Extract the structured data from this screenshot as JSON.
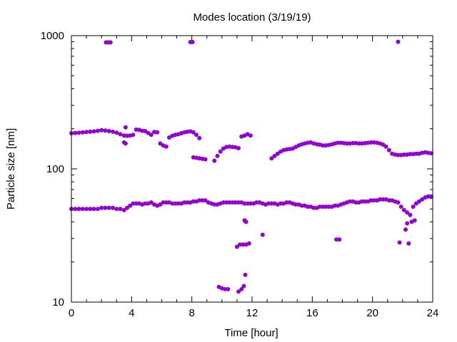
{
  "chart_data": {
    "type": "scatter",
    "title": "Modes location (3/19/19)",
    "xlabel": "Time [hour]",
    "ylabel": "Particle size [nm]",
    "xlim": [
      0,
      24
    ],
    "ylim": [
      10,
      1000
    ],
    "yscale": "log",
    "xticks": [
      0,
      4,
      8,
      12,
      16,
      20,
      24
    ],
    "yticks": [
      10,
      100,
      1000
    ],
    "grid": false,
    "marker_color": "#9400d3",
    "series": [
      {
        "points": [
          [
            0.0,
            50
          ],
          [
            0.25,
            50
          ],
          [
            0.5,
            50
          ],
          [
            0.75,
            50
          ],
          [
            1.0,
            50
          ],
          [
            1.25,
            50
          ],
          [
            1.5,
            50
          ],
          [
            1.75,
            50
          ],
          [
            2.0,
            51
          ],
          [
            2.25,
            51
          ],
          [
            2.5,
            51
          ],
          [
            2.75,
            51
          ],
          [
            3.0,
            50
          ],
          [
            3.25,
            50
          ],
          [
            3.5,
            49
          ],
          [
            3.7,
            51
          ],
          [
            3.9,
            53
          ],
          [
            4.1,
            55
          ],
          [
            4.3,
            55
          ],
          [
            4.5,
            55
          ],
          [
            4.7,
            54
          ],
          [
            4.9,
            55
          ],
          [
            5.1,
            55
          ],
          [
            5.3,
            56
          ],
          [
            5.5,
            54
          ],
          [
            5.7,
            53
          ],
          [
            5.9,
            54
          ],
          [
            6.1,
            56
          ],
          [
            6.3,
            56
          ],
          [
            6.5,
            56
          ],
          [
            6.7,
            55
          ],
          [
            6.9,
            55
          ],
          [
            7.1,
            55
          ],
          [
            7.3,
            55
          ],
          [
            7.5,
            56
          ],
          [
            7.7,
            56
          ],
          [
            7.9,
            56
          ],
          [
            8.1,
            57
          ],
          [
            8.3,
            57
          ],
          [
            8.5,
            58
          ],
          [
            8.7,
            58
          ],
          [
            8.9,
            58
          ],
          [
            9.1,
            56
          ],
          [
            9.3,
            55
          ],
          [
            9.5,
            54
          ],
          [
            9.7,
            54
          ],
          [
            9.9,
            55
          ],
          [
            10.1,
            56
          ],
          [
            10.3,
            56
          ],
          [
            10.5,
            56
          ],
          [
            10.7,
            56
          ],
          [
            10.9,
            56
          ],
          [
            11.1,
            56
          ],
          [
            11.3,
            56
          ],
          [
            11.5,
            55
          ],
          [
            11.7,
            55
          ],
          [
            11.9,
            55
          ],
          [
            12.1,
            55
          ],
          [
            12.3,
            56
          ],
          [
            12.5,
            56
          ],
          [
            12.7,
            55
          ],
          [
            12.9,
            54
          ],
          [
            13.1,
            55
          ],
          [
            13.3,
            55
          ],
          [
            13.5,
            55
          ],
          [
            13.7,
            54
          ],
          [
            13.9,
            55
          ],
          [
            14.1,
            55
          ],
          [
            14.3,
            56
          ],
          [
            14.5,
            56
          ],
          [
            14.7,
            55
          ],
          [
            14.9,
            54
          ],
          [
            15.1,
            54
          ],
          [
            15.3,
            53
          ],
          [
            15.5,
            53
          ],
          [
            15.7,
            52
          ],
          [
            15.9,
            52
          ],
          [
            16.1,
            51
          ],
          [
            16.3,
            51
          ],
          [
            16.5,
            52
          ],
          [
            16.7,
            52
          ],
          [
            16.9,
            52
          ],
          [
            17.1,
            52
          ],
          [
            17.3,
            52
          ],
          [
            17.5,
            53
          ],
          [
            17.7,
            53
          ],
          [
            17.9,
            54
          ],
          [
            18.1,
            55
          ],
          [
            18.3,
            56
          ],
          [
            18.5,
            57
          ],
          [
            18.7,
            57
          ],
          [
            18.9,
            56
          ],
          [
            19.1,
            56
          ],
          [
            19.3,
            57
          ],
          [
            19.5,
            57
          ],
          [
            19.7,
            57
          ],
          [
            19.9,
            58
          ],
          [
            20.1,
            58
          ],
          [
            20.3,
            58
          ],
          [
            20.5,
            59
          ],
          [
            20.7,
            59
          ],
          [
            20.9,
            59
          ],
          [
            21.1,
            58
          ],
          [
            21.3,
            58
          ],
          [
            21.5,
            57
          ],
          [
            21.7,
            56
          ],
          [
            21.9,
            52
          ],
          [
            22.1,
            49
          ],
          [
            22.3,
            47
          ],
          [
            22.5,
            45
          ],
          [
            22.7,
            52
          ],
          [
            22.9,
            55
          ],
          [
            23.1,
            57
          ],
          [
            23.3,
            59
          ],
          [
            23.5,
            61
          ],
          [
            23.7,
            62
          ],
          [
            23.9,
            62
          ]
        ]
      },
      {
        "points": [
          [
            0.0,
            185
          ],
          [
            0.25,
            186
          ],
          [
            0.5,
            187
          ],
          [
            0.75,
            188
          ],
          [
            1.0,
            189
          ],
          [
            1.25,
            190
          ],
          [
            1.5,
            191
          ],
          [
            1.75,
            193
          ],
          [
            2.0,
            195
          ],
          [
            2.25,
            194
          ],
          [
            2.5,
            192
          ],
          [
            2.75,
            190
          ],
          [
            3.0,
            187
          ],
          [
            3.25,
            182
          ],
          [
            3.5,
            178
          ],
          [
            3.7,
            177
          ],
          [
            3.9,
            178
          ],
          [
            4.1,
            180
          ],
          [
            4.3,
            197
          ],
          [
            4.5,
            196
          ],
          [
            4.7,
            193
          ],
          [
            4.9,
            192
          ],
          [
            5.1,
            186
          ],
          [
            5.3,
            180
          ],
          [
            5.5,
            189
          ],
          [
            5.7,
            188
          ],
          [
            5.9,
            155
          ],
          [
            6.1,
            150
          ],
          [
            6.3,
            147
          ],
          [
            6.5,
            172
          ],
          [
            6.7,
            177
          ],
          [
            6.9,
            180
          ],
          [
            7.1,
            182
          ],
          [
            7.3,
            185
          ],
          [
            7.5,
            188
          ],
          [
            7.7,
            190
          ],
          [
            7.9,
            191
          ],
          [
            8.1,
            188
          ],
          [
            8.3,
            180
          ],
          [
            8.5,
            170
          ],
          [
            8.1,
            122
          ],
          [
            8.3,
            121
          ],
          [
            8.5,
            120
          ],
          [
            8.7,
            119
          ],
          [
            8.9,
            118
          ],
          [
            9.5,
            115
          ],
          [
            9.7,
            125
          ],
          [
            9.9,
            135
          ],
          [
            10.1,
            142
          ],
          [
            10.3,
            146
          ],
          [
            10.5,
            147
          ],
          [
            10.7,
            146
          ],
          [
            10.9,
            145
          ],
          [
            11.1,
            143
          ],
          [
            11.3,
            175
          ],
          [
            11.5,
            178
          ],
          [
            11.7,
            182
          ],
          [
            11.9,
            178
          ],
          [
            13.3,
            120
          ],
          [
            13.5,
            125
          ],
          [
            13.7,
            130
          ],
          [
            13.9,
            135
          ],
          [
            14.1,
            138
          ],
          [
            14.3,
            140
          ],
          [
            14.5,
            141
          ],
          [
            14.7,
            142
          ],
          [
            14.9,
            146
          ],
          [
            15.1,
            150
          ],
          [
            15.3,
            153
          ],
          [
            15.5,
            155
          ],
          [
            15.7,
            157
          ],
          [
            15.9,
            158
          ],
          [
            16.1,
            155
          ],
          [
            16.3,
            153
          ],
          [
            16.5,
            152
          ],
          [
            16.7,
            150
          ],
          [
            16.9,
            150
          ],
          [
            17.1,
            151
          ],
          [
            17.3,
            153
          ],
          [
            17.5,
            155
          ],
          [
            17.7,
            157
          ],
          [
            17.9,
            157
          ],
          [
            18.1,
            156
          ],
          [
            18.3,
            155
          ],
          [
            18.5,
            155
          ],
          [
            18.7,
            156
          ],
          [
            18.9,
            156
          ],
          [
            19.1,
            155
          ],
          [
            19.3,
            155
          ],
          [
            19.5,
            156
          ],
          [
            19.7,
            157
          ],
          [
            19.9,
            158
          ],
          [
            20.1,
            158
          ],
          [
            20.3,
            157
          ],
          [
            20.5,
            155
          ],
          [
            20.7,
            152
          ],
          [
            20.9,
            147
          ],
          [
            21.1,
            138
          ],
          [
            21.3,
            130
          ],
          [
            21.5,
            128
          ],
          [
            21.7,
            127
          ],
          [
            21.9,
            127
          ],
          [
            22.1,
            128
          ],
          [
            22.3,
            128
          ],
          [
            22.5,
            129
          ],
          [
            22.7,
            129
          ],
          [
            22.9,
            130
          ],
          [
            23.1,
            130
          ],
          [
            23.3,
            132
          ],
          [
            23.5,
            133
          ],
          [
            23.7,
            132
          ],
          [
            23.9,
            131
          ]
        ]
      },
      {
        "points": [
          [
            2.3,
            890
          ],
          [
            2.45,
            890
          ],
          [
            2.6,
            890
          ],
          [
            7.9,
            895
          ],
          [
            8.05,
            895
          ],
          [
            21.7,
            900
          ],
          [
            3.6,
            205
          ],
          [
            3.6,
            155
          ],
          [
            3.5,
            158
          ],
          [
            9.8,
            13
          ],
          [
            10.0,
            12.7
          ],
          [
            10.2,
            12.5
          ],
          [
            10.4,
            12.5
          ],
          [
            11.1,
            12
          ],
          [
            11.3,
            12.5
          ],
          [
            11.45,
            13.2
          ],
          [
            11.55,
            16
          ],
          [
            11.0,
            26
          ],
          [
            11.2,
            27
          ],
          [
            11.4,
            27
          ],
          [
            11.6,
            27
          ],
          [
            11.8,
            27.5
          ],
          [
            11.5,
            41
          ],
          [
            11.6,
            40
          ],
          [
            12.7,
            32
          ],
          [
            17.6,
            29.5
          ],
          [
            17.8,
            29.5
          ],
          [
            21.8,
            28
          ],
          [
            22.2,
            35
          ],
          [
            22.4,
            27.5
          ],
          [
            22.3,
            39
          ],
          [
            22.6,
            40
          ],
          [
            22.8,
            41
          ]
        ]
      }
    ]
  }
}
